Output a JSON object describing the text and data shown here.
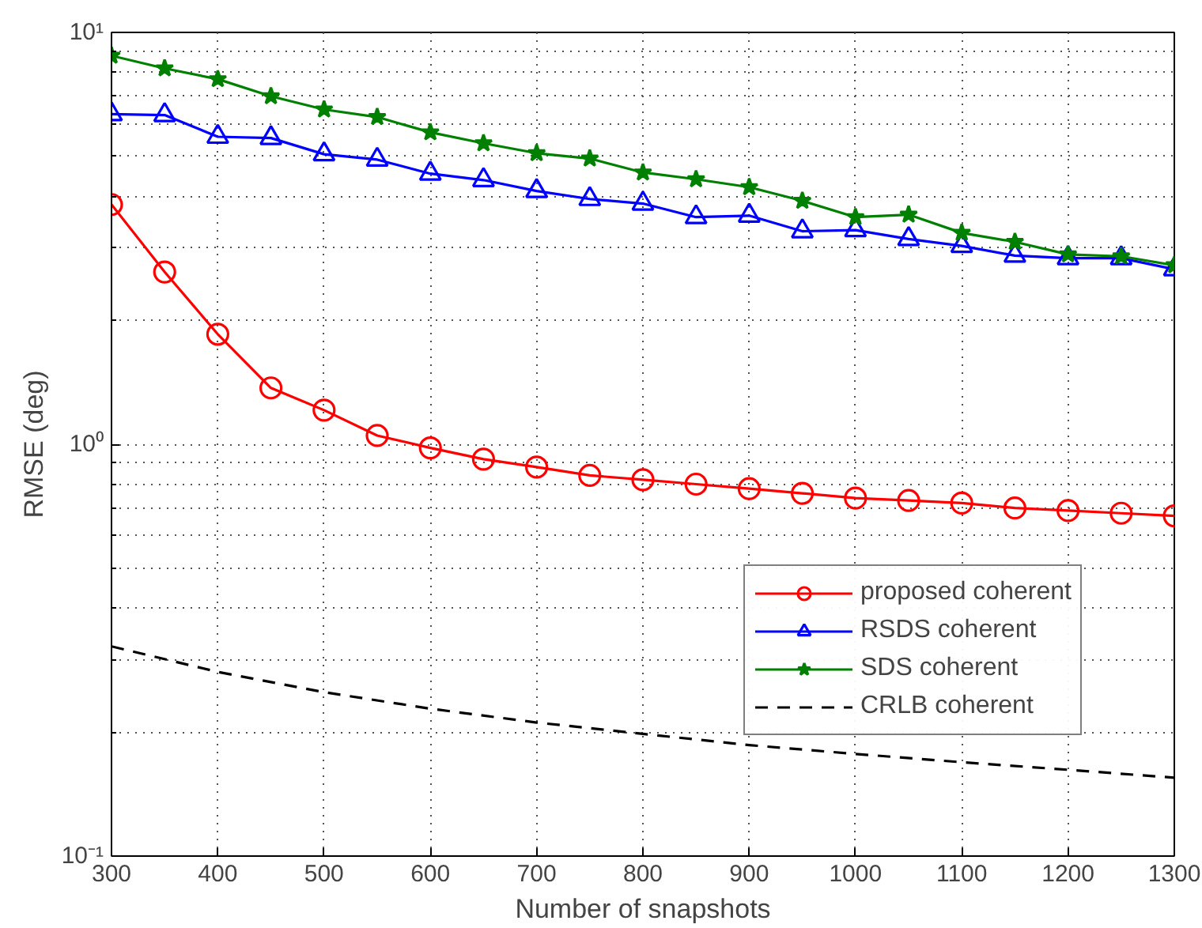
{
  "chart_data": {
    "type": "line",
    "xlabel": "Number of snapshots",
    "ylabel": "RMSE (deg)",
    "log": "y",
    "x": [
      300,
      350,
      400,
      450,
      500,
      550,
      600,
      650,
      700,
      750,
      800,
      850,
      900,
      950,
      1000,
      1050,
      1100,
      1150,
      1200,
      1250,
      1300
    ],
    "xlim": [
      300,
      1300
    ],
    "xticks": [
      300,
      400,
      500,
      600,
      700,
      800,
      900,
      1000,
      1100,
      1200,
      1300
    ],
    "ylim": [
      0.1,
      10
    ],
    "yticks": [
      {
        "value": 0.1,
        "label": "10⁻¹"
      },
      {
        "value": 0.2,
        "label": null
      },
      {
        "value": 0.3,
        "label": null
      },
      {
        "value": 0.4,
        "label": null
      },
      {
        "value": 0.5,
        "label": null
      },
      {
        "value": 0.6,
        "label": null
      },
      {
        "value": 0.7,
        "label": null
      },
      {
        "value": 0.8,
        "label": null
      },
      {
        "value": 0.9,
        "label": null
      },
      {
        "value": 1,
        "label": "10⁰"
      },
      {
        "value": 2,
        "label": null
      },
      {
        "value": 3,
        "label": null
      },
      {
        "value": 4,
        "label": null
      },
      {
        "value": 5,
        "label": null
      },
      {
        "value": 6,
        "label": null
      },
      {
        "value": 7,
        "label": null
      },
      {
        "value": 8,
        "label": null
      },
      {
        "value": 9,
        "label": null
      },
      {
        "value": 10,
        "label": "10¹"
      }
    ],
    "grid": true,
    "legend": "bottom right",
    "series": [
      {
        "name": "proposed coherent",
        "color": "#ff0000",
        "marker": "circle",
        "line_style": "solid",
        "values": [
          3.82,
          2.62,
          1.85,
          1.37,
          1.21,
          1.05,
          0.98,
          0.92,
          0.88,
          0.84,
          0.82,
          0.8,
          0.78,
          0.76,
          0.74,
          0.73,
          0.72,
          0.7,
          0.69,
          0.68,
          0.67
        ]
      },
      {
        "name": "RSDS coherent",
        "color": "#0000ff",
        "marker": "triangle",
        "line_style": "solid",
        "values": [
          6.33,
          6.3,
          5.58,
          5.54,
          5.06,
          4.91,
          4.54,
          4.38,
          4.12,
          3.94,
          3.84,
          3.56,
          3.59,
          3.29,
          3.31,
          3.15,
          3.03,
          2.87,
          2.83,
          2.83,
          2.66
        ]
      },
      {
        "name": "SDS coherent",
        "color": "#008000",
        "marker": "star",
        "line_style": "solid",
        "values": [
          8.78,
          8.18,
          7.7,
          7.0,
          6.5,
          6.23,
          5.72,
          5.38,
          5.09,
          4.94,
          4.57,
          4.4,
          4.21,
          3.9,
          3.56,
          3.61,
          3.26,
          3.1,
          2.89,
          2.86,
          2.72
        ]
      },
      {
        "name": "CRLB coherent",
        "color": "#000000",
        "marker": "none",
        "line_style": "dashed",
        "x": [
          300,
          400,
          500,
          600,
          700,
          800,
          900,
          1000,
          1100,
          1200,
          1300
        ],
        "values": [
          0.323,
          0.28,
          0.25,
          0.228,
          0.211,
          0.198,
          0.186,
          0.177,
          0.169,
          0.162,
          0.155
        ]
      }
    ]
  }
}
